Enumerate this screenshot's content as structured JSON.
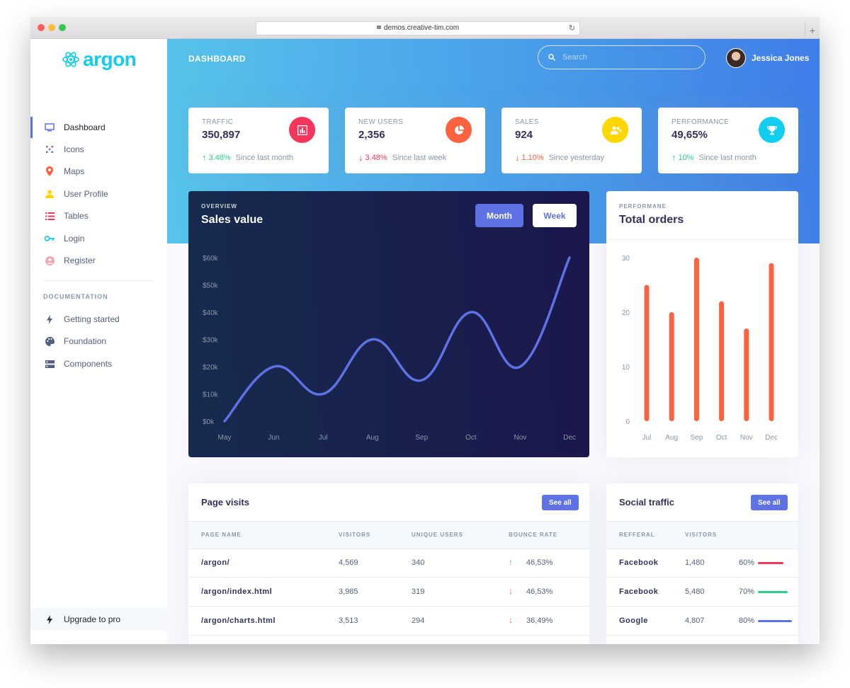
{
  "browser": {
    "url": "demos.creative-tim.com"
  },
  "sidebar": {
    "brand": "argon",
    "items": [
      {
        "label": "Dashboard",
        "icon": "monitor-icon",
        "color": "#5e72e4"
      },
      {
        "label": "Icons",
        "icon": "planet-icon",
        "color": "#5e72e4"
      },
      {
        "label": "Maps",
        "icon": "pin-icon",
        "color": "#fb6340"
      },
      {
        "label": "User Profile",
        "icon": "user-icon",
        "color": "#ffd600"
      },
      {
        "label": "Tables",
        "icon": "list-icon",
        "color": "#f5365c"
      },
      {
        "label": "Login",
        "icon": "key-icon",
        "color": "#11cdef"
      },
      {
        "label": "Register",
        "icon": "circle-user-icon",
        "color": "#f3a4b5"
      }
    ],
    "doc_heading": "DOCUMENTATION",
    "doc_items": [
      {
        "label": "Getting started",
        "icon": "bolt-icon"
      },
      {
        "label": "Foundation",
        "icon": "palette-icon"
      },
      {
        "label": "Components",
        "icon": "components-icon"
      }
    ],
    "upgrade": "Upgrade to pro"
  },
  "header": {
    "title": "DASHBOARD",
    "search_placeholder": "Search",
    "user_name": "Jessica Jones"
  },
  "stats": [
    {
      "label": "TRAFFIC",
      "value": "350,897",
      "change": "3.48%",
      "direction": "up",
      "since": "Since last month",
      "icon_color": "#f5365c",
      "change_color": "#2dce89",
      "icon": "chart-bar-icon"
    },
    {
      "label": "NEW USERS",
      "value": "2,356",
      "change": "3.48%",
      "direction": "down",
      "since": "Since last week",
      "icon_color": "#fb6340",
      "change_color": "#f5365c",
      "icon": "pie-chart-icon"
    },
    {
      "label": "SALES",
      "value": "924",
      "change": "1.10%",
      "direction": "down",
      "since": "Since yesterday",
      "icon_color": "#ffd600",
      "change_color": "#fb6340",
      "icon": "users-icon"
    },
    {
      "label": "PERFORMANCE",
      "value": "49,65%",
      "change": "10%",
      "direction": "up",
      "since": "Since last month",
      "icon_color": "#11cdef",
      "change_color": "#2dce89",
      "icon": "trophy-icon"
    }
  ],
  "sales": {
    "overline": "OVERVIEW",
    "title": "Sales value",
    "btn_month": "Month",
    "btn_week": "Week"
  },
  "orders": {
    "overline": "PERFORMANE",
    "title": "Total orders"
  },
  "chart_data": [
    {
      "type": "line",
      "categories": [
        "May",
        "Jun",
        "Jul",
        "Aug",
        "Sep",
        "Oct",
        "Nov",
        "Dec"
      ],
      "values": [
        0,
        20,
        10,
        30,
        15,
        40,
        20,
        60
      ],
      "yticks": [
        "$0k",
        "$10k",
        "$20k",
        "$30k",
        "$40k",
        "$50k",
        "$60k"
      ],
      "ylim": [
        0,
        60
      ],
      "color": "#5e72e4"
    },
    {
      "type": "bar",
      "categories": [
        "Jul",
        "Aug",
        "Sep",
        "Oct",
        "Nov",
        "Dec"
      ],
      "values": [
        25,
        20,
        30,
        22,
        17,
        29
      ],
      "yticks": [
        "0",
        "10",
        "20",
        "30"
      ],
      "ylim": [
        0,
        30
      ],
      "color": "#fb6340"
    }
  ],
  "visits": {
    "title": "Page visits",
    "see_all": "See all",
    "columns": [
      "PAGE NAME",
      "VISITORS",
      "UNIQUE USERS",
      "BOUNCE RATE"
    ],
    "rows": [
      {
        "page": "/argon/",
        "visitors": "4,569",
        "unique": "340",
        "bounce": "46,53%",
        "dir": "up"
      },
      {
        "page": "/argon/index.html",
        "visitors": "3,985",
        "unique": "319",
        "bounce": "46,53%",
        "dir": "down"
      },
      {
        "page": "/argon/charts.html",
        "visitors": "3,513",
        "unique": "294",
        "bounce": "36,49%",
        "dir": "down"
      }
    ]
  },
  "social": {
    "title": "Social traffic",
    "see_all": "See all",
    "columns": [
      "REFFERAL",
      "VISITORS"
    ],
    "rows": [
      {
        "name": "Facebook",
        "visitors": "1,480",
        "pct": "60%",
        "value": 60,
        "color": "#f5365c"
      },
      {
        "name": "Facebook",
        "visitors": "5,480",
        "pct": "70%",
        "value": 70,
        "color": "#2dce89"
      },
      {
        "name": "Google",
        "visitors": "4,807",
        "pct": "80%",
        "value": 80,
        "color": "#5e72e4"
      }
    ]
  }
}
